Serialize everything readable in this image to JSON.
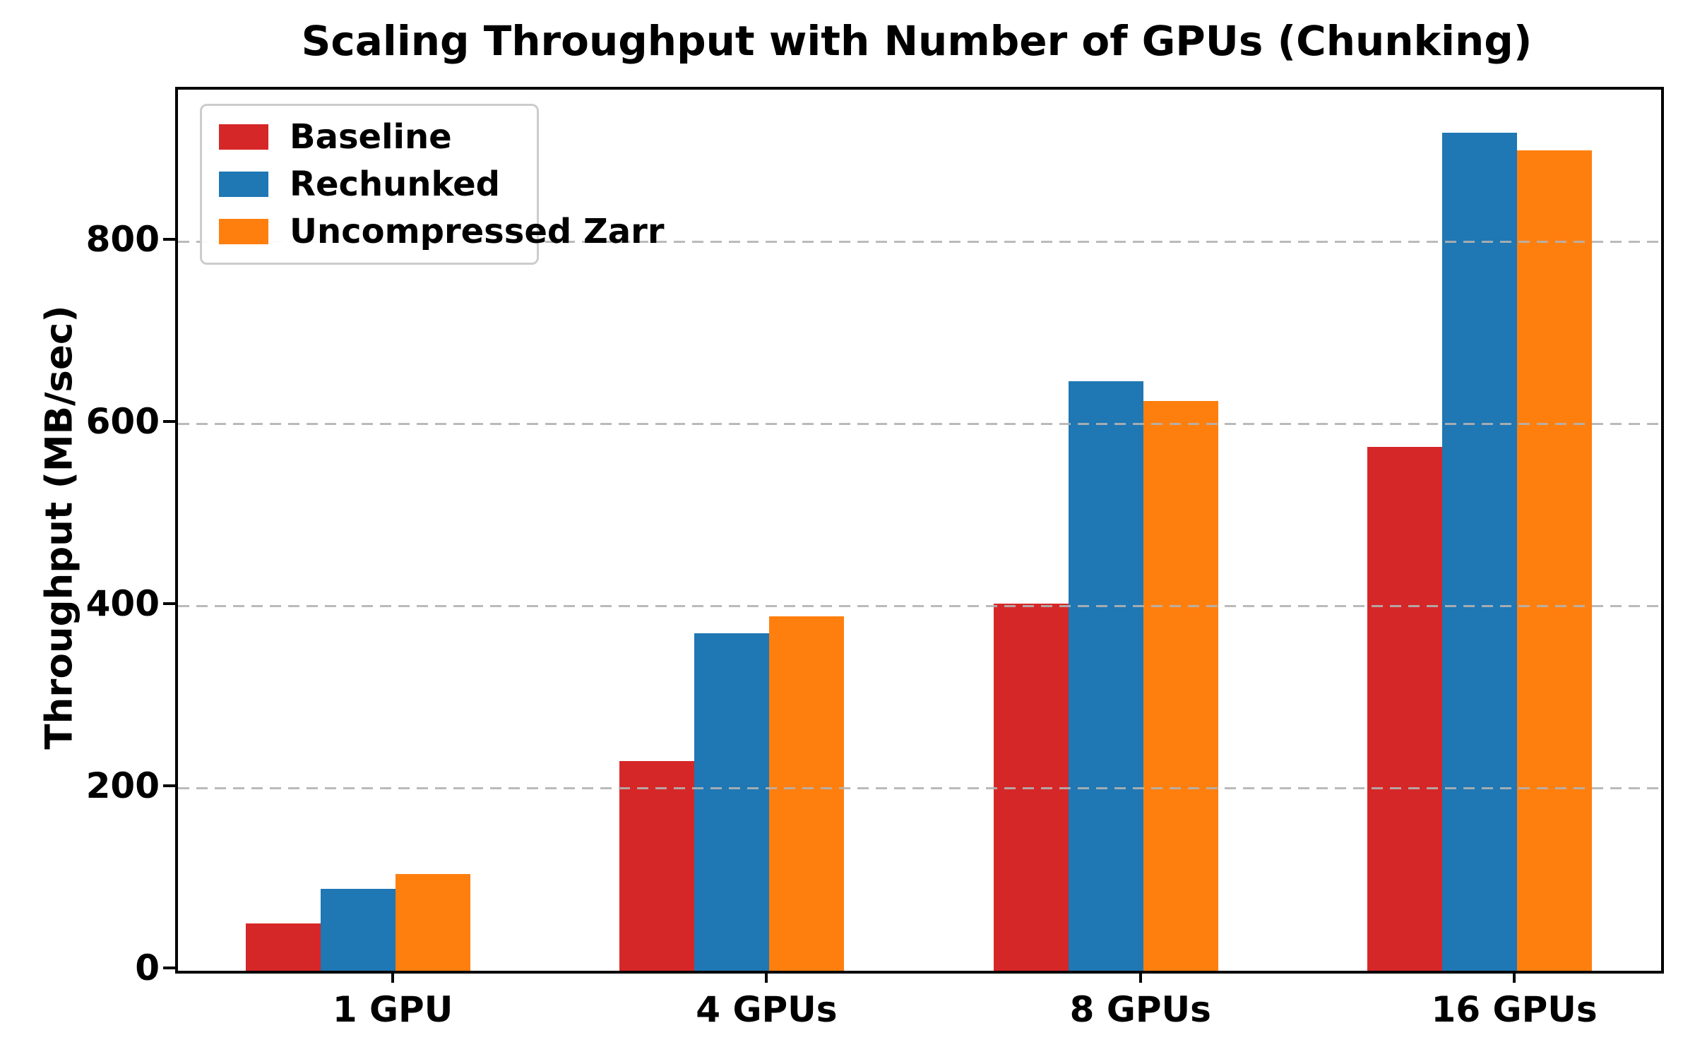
{
  "chart_data": {
    "type": "bar",
    "title": "Scaling Throughput with Number of GPUs (Chunking)",
    "xlabel": "",
    "ylabel": "Throughput (MB/sec)",
    "categories": [
      "1 GPU",
      "4 GPUs",
      "8 GPUs",
      "16 GPUs"
    ],
    "series": [
      {
        "name": "Baseline",
        "color": "#d62728",
        "values": [
          52,
          230,
          403,
          575
        ]
      },
      {
        "name": "Rechunked",
        "color": "#1f77b4",
        "values": [
          90,
          370,
          647,
          920
        ]
      },
      {
        "name": "Uncompressed Zarr",
        "color": "#ff7f0e",
        "values": [
          106,
          389,
          625,
          900
        ]
      }
    ],
    "yticks": [
      0,
      200,
      400,
      600,
      800
    ],
    "ylim": [
      0,
      967
    ],
    "grid": "horizontal dashed gridlines at labeled ticks, drawn above bars",
    "grid_color": "#b2b2b2",
    "legend_position": "upper left",
    "text_color": "#000000",
    "background_color": "#ffffff"
  }
}
